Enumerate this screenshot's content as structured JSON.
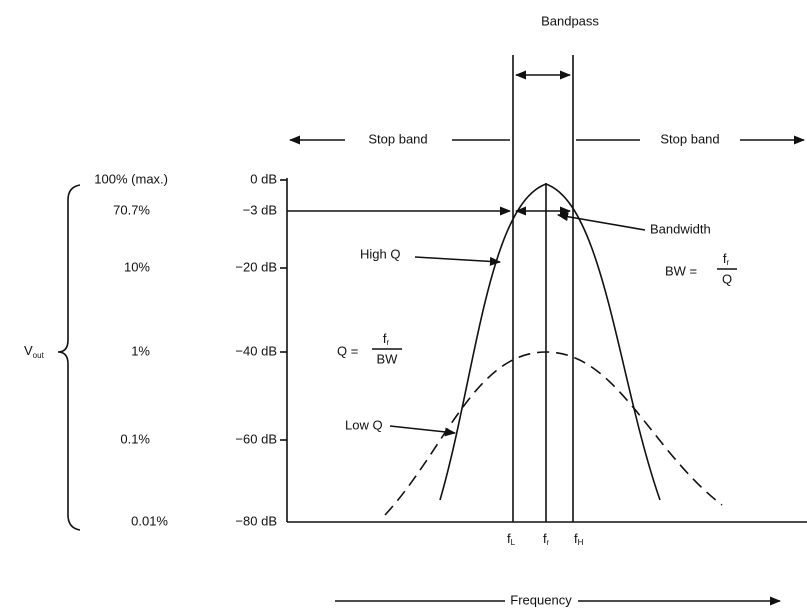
{
  "header": {
    "title": "Bandpass"
  },
  "regions": {
    "stop_left": "Stop band",
    "stop_right": "Stop band"
  },
  "levels": [
    {
      "percent": "100% (max.)",
      "db": "0 dB"
    },
    {
      "percent": "70.7%",
      "db": "−3 dB"
    },
    {
      "percent": "10%",
      "db": "−20 dB"
    },
    {
      "percent": "1%",
      "db": "−40 dB"
    },
    {
      "percent": "0.1%",
      "db": "−60 dB"
    },
    {
      "percent": "0.01%",
      "db": "−80 dB"
    }
  ],
  "axis": {
    "y_label": "V",
    "y_label_sub": "out",
    "x_label": "Frequency"
  },
  "annotations": {
    "high_q": "High Q",
    "low_q": "Low Q",
    "bandwidth": "Bandwidth",
    "bw_formula": {
      "lhs": "BW =",
      "num": "f",
      "num_sub": "r",
      "den": "Q"
    },
    "q_formula": {
      "lhs": "Q =",
      "num": "f",
      "num_sub": "r",
      "den": "BW"
    }
  },
  "frequencies": [
    {
      "main": "f",
      "sub": "L"
    },
    {
      "main": "f",
      "sub": "r"
    },
    {
      "main": "f",
      "sub": "H"
    }
  ]
}
